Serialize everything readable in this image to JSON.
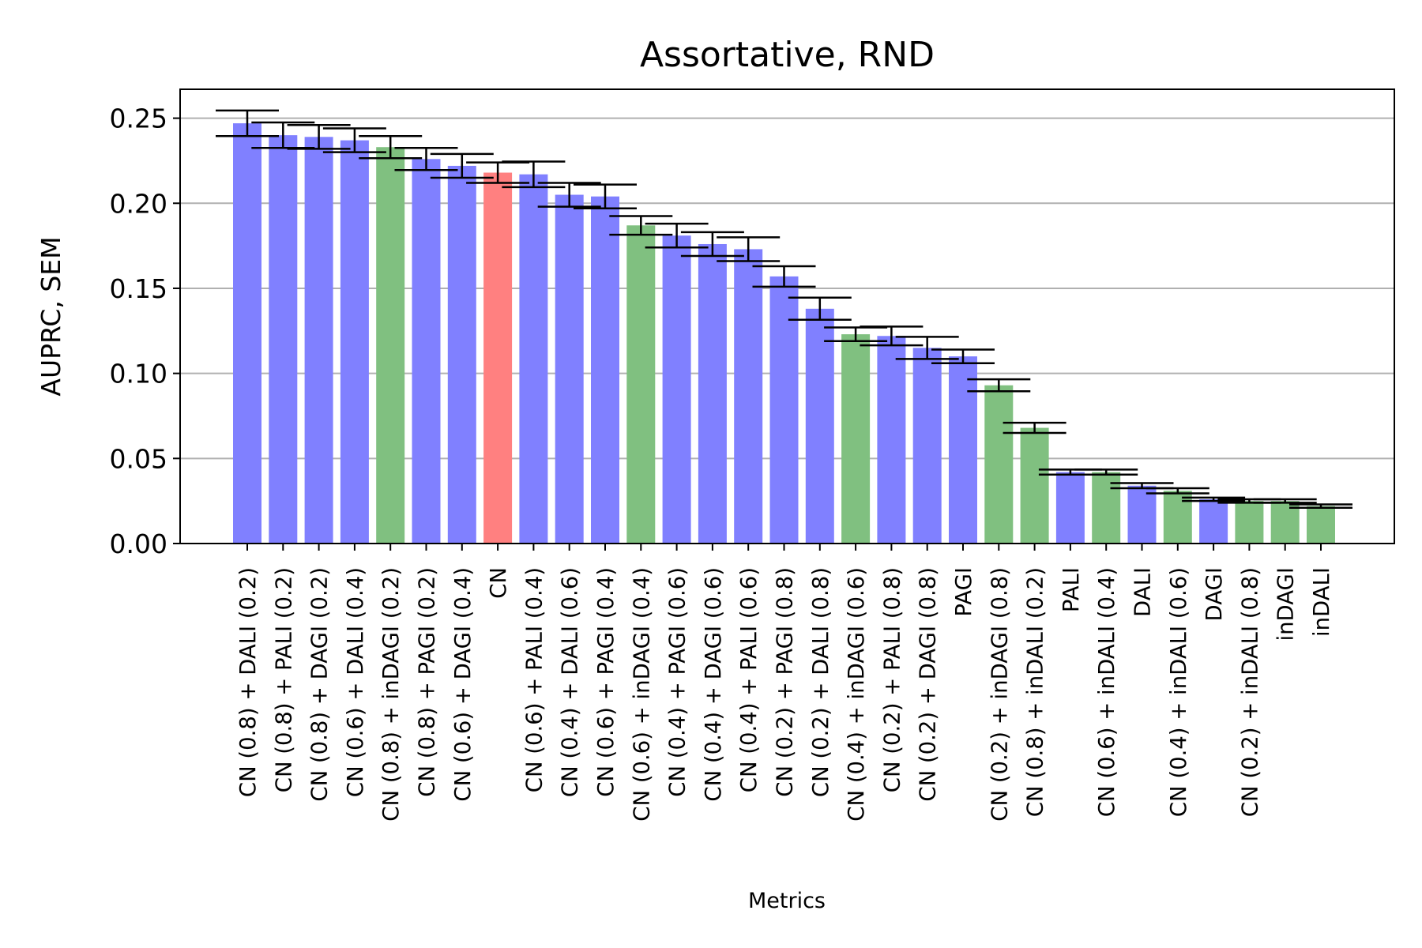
{
  "chart_data": {
    "type": "bar",
    "title": "Assortative, RND",
    "xlabel": "Metrics",
    "ylabel": "AUPRC, SEM",
    "ylim": [
      0,
      0.267
    ],
    "yticks": [
      "0.00",
      "0.05",
      "0.10",
      "0.15",
      "0.20",
      "0.25"
    ],
    "grid": "horizontal",
    "categories": [
      "CN (0.8) + DALI (0.2)",
      "CN (0.8) + PALI (0.2)",
      "CN (0.8) + DAGI (0.2)",
      "CN (0.6) + DALI (0.4)",
      "CN (0.8) + inDAGI (0.2)",
      "CN (0.8) + PAGI (0.2)",
      "CN (0.6) + DAGI (0.4)",
      "CN",
      "CN (0.6) + PALI (0.4)",
      "CN (0.4) + DALI (0.6)",
      "CN (0.6) + PAGI (0.4)",
      "CN (0.6) + inDAGI (0.4)",
      "CN (0.4) + PAGI (0.6)",
      "CN (0.4) + DAGI (0.6)",
      "CN (0.4) + PALI (0.6)",
      "CN (0.2) + PAGI (0.8)",
      "CN (0.2) + DALI (0.8)",
      "CN (0.4) + inDAGI (0.6)",
      "CN (0.2) + PALI (0.8)",
      "CN (0.2) + DAGI (0.8)",
      "PAGI",
      "CN (0.2) + inDAGI (0.8)",
      "CN (0.8) + inDALI (0.2)",
      "PALI",
      "CN (0.6) + inDALI (0.4)",
      "DALI",
      "CN (0.4) + inDALI (0.6)",
      "DAGI",
      "CN (0.2) + inDALI (0.8)",
      "inDAGI",
      "inDALI"
    ],
    "values": [
      0.247,
      0.24,
      0.239,
      0.237,
      0.233,
      0.226,
      0.222,
      0.218,
      0.217,
      0.205,
      0.204,
      0.187,
      0.181,
      0.176,
      0.173,
      0.157,
      0.138,
      0.123,
      0.122,
      0.115,
      0.11,
      0.093,
      0.068,
      0.042,
      0.042,
      0.034,
      0.031,
      0.026,
      0.025,
      0.025,
      0.022
    ],
    "errors": [
      0.0075,
      0.0075,
      0.007,
      0.007,
      0.0065,
      0.0065,
      0.007,
      0.006,
      0.0075,
      0.007,
      0.007,
      0.0055,
      0.007,
      0.007,
      0.007,
      0.006,
      0.0065,
      0.004,
      0.0055,
      0.0065,
      0.004,
      0.0035,
      0.003,
      0.0015,
      0.0015,
      0.0015,
      0.0015,
      0.001,
      0.001,
      0.001,
      0.001
    ],
    "colors": [
      "blue",
      "blue",
      "blue",
      "blue",
      "green",
      "blue",
      "blue",
      "red",
      "blue",
      "blue",
      "blue",
      "green",
      "blue",
      "blue",
      "blue",
      "blue",
      "blue",
      "green",
      "blue",
      "blue",
      "blue",
      "green",
      "green",
      "blue",
      "green",
      "blue",
      "green",
      "blue",
      "green",
      "green",
      "green"
    ],
    "palette": {
      "blue": "#8080ff",
      "green": "#80c080",
      "red": "#ff8080",
      "grid": "#b0b0b0"
    }
  }
}
